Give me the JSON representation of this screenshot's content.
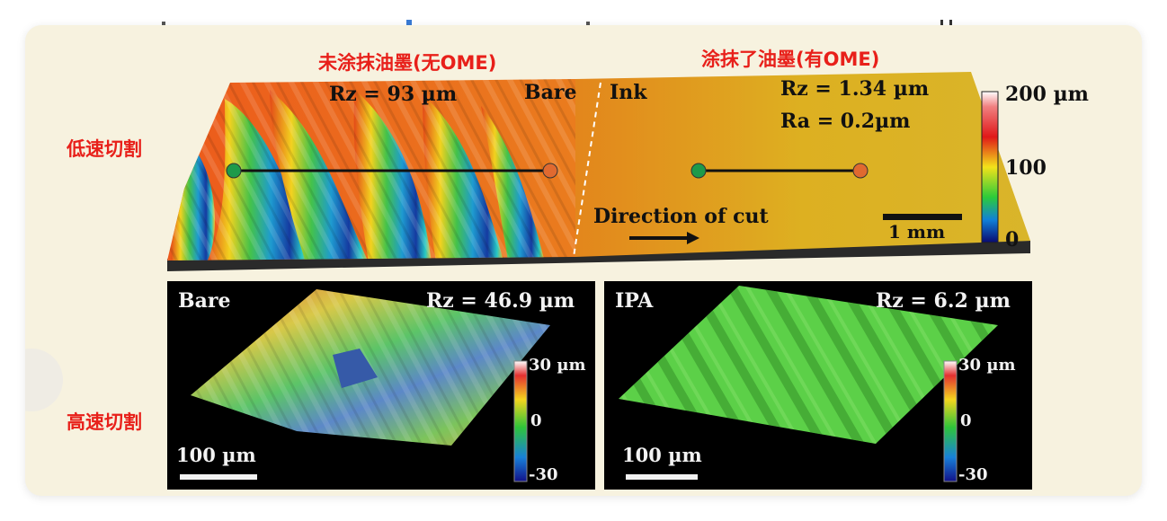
{
  "row_labels": {
    "low_speed": "低速切割",
    "high_speed": "高速切割"
  },
  "top_panel": {
    "left_title": "未涂抹油墨(无OME)",
    "right_title": "涂抹了油墨(有OME)",
    "bare_rz": "Rz = 93 µm",
    "bare_label": "Bare",
    "ink_label": "Ink",
    "ink_rz": "Rz = 1.34 µm",
    "ink_ra": "Ra = 0.2µm",
    "direction": "Direction of cut",
    "scale_bar": "1 mm",
    "colorbar": {
      "max": "200 µm",
      "mid": "100",
      "min": "0"
    }
  },
  "bottom_left": {
    "title": "Bare",
    "rz": "Rz = 46.9 µm",
    "scale_bar": "100 µm",
    "colorbar": {
      "max": "30 µm",
      "mid": "0",
      "min": "-30"
    }
  },
  "bottom_right": {
    "title": "IPA",
    "rz": "Rz = 6.2 µm",
    "scale_bar": "100 µm",
    "colorbar": {
      "max": "30 µm",
      "mid": "0",
      "min": "-30"
    }
  },
  "colors": {
    "label_red": "#e8201a",
    "card_bg": "#f7f2df",
    "marker_green": "#1e9a4a",
    "marker_orange": "#e06a30"
  }
}
